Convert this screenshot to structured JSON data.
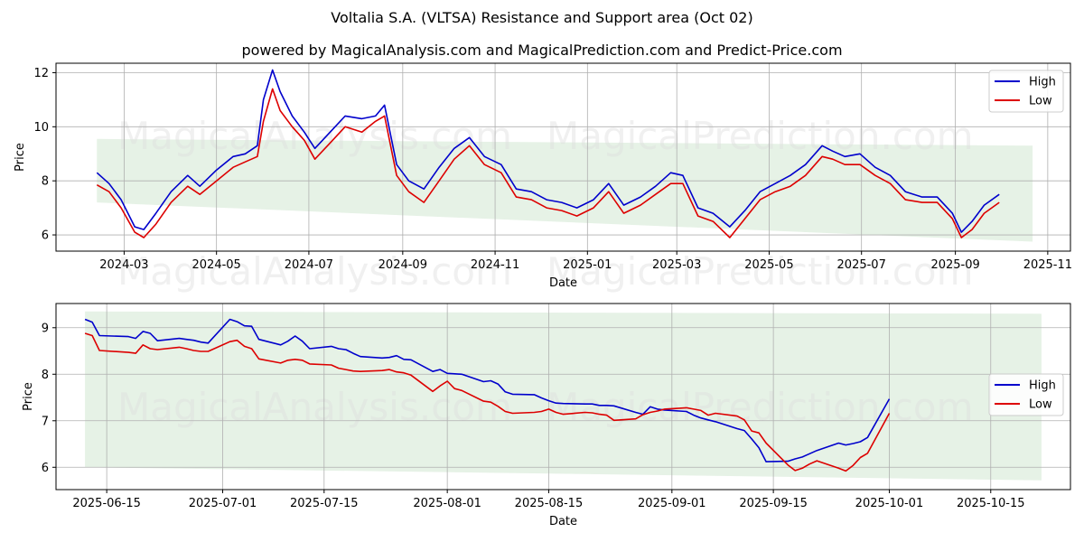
{
  "title": "Voltalia S.A. (VLTSA) Resistance and Support area (Oct 02)",
  "subtitle": "powered by MagicalAnalysis.com and MagicalPrediction.com and Predict-Price.com",
  "watermarks": [
    "MagicalAnalysis.com",
    "MagicalPrediction.com"
  ],
  "colors": {
    "high": "#0000cc",
    "low": "#dd0000",
    "band": "#e6f2e6",
    "grid": "#b0b0b0"
  },
  "chart_data": [
    {
      "type": "line",
      "xlabel": "Date",
      "ylabel": "Price",
      "xlim": [
        "2024-01-16",
        "2025-11-16"
      ],
      "ylim": [
        5.4,
        12.35
      ],
      "yticks": [
        6,
        8,
        10,
        12
      ],
      "xticks": [
        "2024-03-01",
        "2024-05-01",
        "2024-07-01",
        "2024-09-01",
        "2024-11-01",
        "2025-01-01",
        "2025-03-01",
        "2025-05-01",
        "2025-07-01",
        "2025-09-01",
        "2025-11-01"
      ],
      "xticklabels": [
        "2024-03",
        "2024-05",
        "2024-07",
        "2024-09",
        "2024-11",
        "2025-01",
        "2025-03",
        "2025-05",
        "2025-07",
        "2025-09",
        "2025-11"
      ],
      "grid": true,
      "legend": "top-right",
      "band": {
        "x": [
          "2024-02-12",
          "2025-10-22"
        ],
        "upper": [
          9.55,
          9.3
        ],
        "lower": [
          7.2,
          5.75
        ]
      },
      "series": [
        {
          "name": "High",
          "x": [
            "2024-02-12",
            "2024-02-20",
            "2024-02-28",
            "2024-03-08",
            "2024-03-14",
            "2024-03-22",
            "2024-04-01",
            "2024-04-12",
            "2024-04-20",
            "2024-05-01",
            "2024-05-12",
            "2024-05-20",
            "2024-05-28",
            "2024-06-01",
            "2024-06-07",
            "2024-06-12",
            "2024-06-20",
            "2024-06-28",
            "2024-07-05",
            "2024-07-15",
            "2024-07-25",
            "2024-08-05",
            "2024-08-14",
            "2024-08-20",
            "2024-08-28",
            "2024-09-05",
            "2024-09-15",
            "2024-09-25",
            "2024-10-05",
            "2024-10-15",
            "2024-10-25",
            "2024-11-05",
            "2024-11-15",
            "2024-11-25",
            "2024-12-05",
            "2024-12-15",
            "2024-12-25",
            "2025-01-05",
            "2025-01-15",
            "2025-01-25",
            "2025-02-05",
            "2025-02-15",
            "2025-02-25",
            "2025-03-05",
            "2025-03-15",
            "2025-03-25",
            "2025-04-05",
            "2025-04-15",
            "2025-04-25",
            "2025-05-05",
            "2025-05-15",
            "2025-05-25",
            "2025-06-05",
            "2025-06-12",
            "2025-06-20",
            "2025-06-30",
            "2025-07-10",
            "2025-07-20",
            "2025-07-30",
            "2025-08-10",
            "2025-08-20",
            "2025-08-30",
            "2025-09-05",
            "2025-09-12",
            "2025-09-20",
            "2025-09-30"
          ],
          "values": [
            8.3,
            7.9,
            7.3,
            6.3,
            6.2,
            6.8,
            7.6,
            8.2,
            7.8,
            8.4,
            8.9,
            9.0,
            9.3,
            11.0,
            12.1,
            11.3,
            10.4,
            9.8,
            9.2,
            9.8,
            10.4,
            10.3,
            10.4,
            10.8,
            8.6,
            8.0,
            7.7,
            8.5,
            9.2,
            9.6,
            8.9,
            8.6,
            7.7,
            7.6,
            7.3,
            7.2,
            7.0,
            7.3,
            7.9,
            7.1,
            7.4,
            7.8,
            8.3,
            8.2,
            7.0,
            6.8,
            6.3,
            6.9,
            7.6,
            7.9,
            8.2,
            8.6,
            9.3,
            9.1,
            8.9,
            9.0,
            8.5,
            8.2,
            7.6,
            7.4,
            7.4,
            6.8,
            6.1,
            6.5,
            7.1,
            7.5
          ]
        },
        {
          "name": "Low",
          "x": [
            "2024-02-12",
            "2024-02-20",
            "2024-02-28",
            "2024-03-08",
            "2024-03-14",
            "2024-03-22",
            "2024-04-01",
            "2024-04-12",
            "2024-04-20",
            "2024-05-01",
            "2024-05-12",
            "2024-05-20",
            "2024-05-28",
            "2024-06-01",
            "2024-06-07",
            "2024-06-12",
            "2024-06-20",
            "2024-06-28",
            "2024-07-05",
            "2024-07-15",
            "2024-07-25",
            "2024-08-05",
            "2024-08-14",
            "2024-08-20",
            "2024-08-28",
            "2024-09-05",
            "2024-09-15",
            "2024-09-25",
            "2024-10-05",
            "2024-10-15",
            "2024-10-25",
            "2024-11-05",
            "2024-11-15",
            "2024-11-25",
            "2024-12-05",
            "2024-12-15",
            "2024-12-25",
            "2025-01-05",
            "2025-01-15",
            "2025-01-25",
            "2025-02-05",
            "2025-02-15",
            "2025-02-25",
            "2025-03-05",
            "2025-03-15",
            "2025-03-25",
            "2025-04-05",
            "2025-04-15",
            "2025-04-25",
            "2025-05-05",
            "2025-05-15",
            "2025-05-25",
            "2025-06-05",
            "2025-06-12",
            "2025-06-20",
            "2025-06-30",
            "2025-07-10",
            "2025-07-20",
            "2025-07-30",
            "2025-08-10",
            "2025-08-20",
            "2025-08-30",
            "2025-09-05",
            "2025-09-12",
            "2025-09-20",
            "2025-09-30"
          ],
          "values": [
            7.85,
            7.6,
            7.0,
            6.1,
            5.9,
            6.4,
            7.2,
            7.8,
            7.5,
            8.0,
            8.5,
            8.7,
            8.9,
            10.2,
            11.4,
            10.6,
            10.0,
            9.5,
            8.8,
            9.4,
            10.0,
            9.8,
            10.2,
            10.4,
            8.2,
            7.6,
            7.2,
            8.0,
            8.8,
            9.3,
            8.6,
            8.3,
            7.4,
            7.3,
            7.0,
            6.9,
            6.7,
            7.0,
            7.6,
            6.8,
            7.1,
            7.5,
            7.9,
            7.9,
            6.7,
            6.5,
            5.9,
            6.6,
            7.3,
            7.6,
            7.8,
            8.2,
            8.9,
            8.8,
            8.6,
            8.6,
            8.2,
            7.9,
            7.3,
            7.2,
            7.2,
            6.6,
            5.9,
            6.2,
            6.8,
            7.2
          ]
        }
      ]
    },
    {
      "type": "line",
      "xlabel": "Date",
      "ylabel": "Price",
      "xlim": [
        "2025-06-08",
        "2025-10-26"
      ],
      "ylim": [
        5.52,
        9.52
      ],
      "yticks": [
        6,
        7,
        8,
        9
      ],
      "xticks": [
        "2025-06-15",
        "2025-07-01",
        "2025-07-15",
        "2025-08-01",
        "2025-08-15",
        "2025-09-01",
        "2025-09-15",
        "2025-10-01",
        "2025-10-15"
      ],
      "xticklabels": [
        "2025-06-15",
        "2025-07-01",
        "2025-07-15",
        "2025-08-01",
        "2025-08-15",
        "2025-09-01",
        "2025-09-15",
        "2025-10-01",
        "2025-10-15"
      ],
      "grid": true,
      "legend": "center-right",
      "band": {
        "x": [
          "2025-06-12",
          "2025-10-22"
        ],
        "upper": [
          9.35,
          9.3
        ],
        "lower": [
          6.0,
          5.72
        ]
      },
      "series": [
        {
          "name": "High",
          "x": [
            "2025-06-12",
            "2025-06-13",
            "2025-06-14",
            "2025-06-18",
            "2025-06-19",
            "2025-06-20",
            "2025-06-21",
            "2025-06-22",
            "2025-06-25",
            "2025-06-26",
            "2025-06-27",
            "2025-06-28",
            "2025-06-29",
            "2025-07-02",
            "2025-07-03",
            "2025-07-04",
            "2025-07-05",
            "2025-07-06",
            "2025-07-09",
            "2025-07-10",
            "2025-07-11",
            "2025-07-12",
            "2025-07-13",
            "2025-07-16",
            "2025-07-17",
            "2025-07-18",
            "2025-07-19",
            "2025-07-20",
            "2025-07-23",
            "2025-07-24",
            "2025-07-25",
            "2025-07-26",
            "2025-07-27",
            "2025-07-30",
            "2025-07-31",
            "2025-08-01",
            "2025-08-02",
            "2025-08-03",
            "2025-08-06",
            "2025-08-07",
            "2025-08-08",
            "2025-08-09",
            "2025-08-10",
            "2025-08-13",
            "2025-08-14",
            "2025-08-15",
            "2025-08-16",
            "2025-08-17",
            "2025-08-20",
            "2025-08-21",
            "2025-08-22",
            "2025-08-23",
            "2025-08-24",
            "2025-08-27",
            "2025-08-28",
            "2025-08-29",
            "2025-08-30",
            "2025-08-31",
            "2025-09-03",
            "2025-09-04",
            "2025-09-05",
            "2025-09-06",
            "2025-09-07",
            "2025-09-10",
            "2025-09-11",
            "2025-09-12",
            "2025-09-13",
            "2025-09-14",
            "2025-09-17",
            "2025-09-18",
            "2025-09-19",
            "2025-09-20",
            "2025-09-21",
            "2025-09-24",
            "2025-09-25",
            "2025-09-26",
            "2025-09-27",
            "2025-09-28",
            "2025-10-01"
          ],
          "values": [
            9.18,
            9.12,
            8.83,
            8.81,
            8.77,
            8.92,
            8.88,
            8.72,
            8.77,
            8.75,
            8.73,
            8.69,
            8.67,
            9.18,
            9.13,
            9.04,
            9.03,
            8.75,
            8.63,
            8.71,
            8.82,
            8.71,
            8.55,
            8.6,
            8.55,
            8.53,
            8.45,
            8.38,
            8.35,
            8.36,
            8.4,
            8.32,
            8.31,
            8.06,
            8.1,
            8.02,
            8.01,
            8.0,
            7.84,
            7.86,
            7.79,
            7.62,
            7.57,
            7.56,
            7.49,
            7.43,
            7.38,
            7.37,
            7.36,
            7.36,
            7.33,
            7.33,
            7.32,
            7.18,
            7.14,
            7.3,
            7.25,
            7.23,
            7.2,
            7.12,
            7.06,
            7.02,
            6.98,
            6.83,
            6.79,
            6.61,
            6.42,
            6.12,
            6.13,
            6.18,
            6.22,
            6.29,
            6.36,
            6.52,
            6.48,
            6.51,
            6.55,
            6.64,
            7.47
          ]
        },
        {
          "name": "Low",
          "x": [
            "2025-06-12",
            "2025-06-13",
            "2025-06-14",
            "2025-06-18",
            "2025-06-19",
            "2025-06-20",
            "2025-06-21",
            "2025-06-22",
            "2025-06-25",
            "2025-06-26",
            "2025-06-27",
            "2025-06-28",
            "2025-06-29",
            "2025-07-02",
            "2025-07-03",
            "2025-07-04",
            "2025-07-05",
            "2025-07-06",
            "2025-07-09",
            "2025-07-10",
            "2025-07-11",
            "2025-07-12",
            "2025-07-13",
            "2025-07-16",
            "2025-07-17",
            "2025-07-18",
            "2025-07-19",
            "2025-07-20",
            "2025-07-23",
            "2025-07-24",
            "2025-07-25",
            "2025-07-26",
            "2025-07-27",
            "2025-07-30",
            "2025-07-31",
            "2025-08-01",
            "2025-08-02",
            "2025-08-03",
            "2025-08-06",
            "2025-08-07",
            "2025-08-08",
            "2025-08-09",
            "2025-08-10",
            "2025-08-13",
            "2025-08-14",
            "2025-08-15",
            "2025-08-16",
            "2025-08-17",
            "2025-08-20",
            "2025-08-21",
            "2025-08-22",
            "2025-08-23",
            "2025-08-24",
            "2025-08-27",
            "2025-08-28",
            "2025-08-29",
            "2025-08-30",
            "2025-08-31",
            "2025-09-03",
            "2025-09-04",
            "2025-09-05",
            "2025-09-06",
            "2025-09-07",
            "2025-09-10",
            "2025-09-11",
            "2025-09-12",
            "2025-09-13",
            "2025-09-14",
            "2025-09-17",
            "2025-09-18",
            "2025-09-19",
            "2025-09-20",
            "2025-09-21",
            "2025-09-24",
            "2025-09-25",
            "2025-09-26",
            "2025-09-27",
            "2025-09-28",
            "2025-10-01"
          ],
          "values": [
            8.88,
            8.83,
            8.51,
            8.47,
            8.45,
            8.63,
            8.55,
            8.53,
            8.58,
            8.55,
            8.51,
            8.49,
            8.49,
            8.7,
            8.73,
            8.6,
            8.55,
            8.33,
            8.24,
            8.3,
            8.32,
            8.3,
            8.22,
            8.2,
            8.13,
            8.1,
            8.07,
            8.06,
            8.08,
            8.1,
            8.05,
            8.03,
            7.98,
            7.63,
            7.75,
            7.85,
            7.69,
            7.65,
            7.42,
            7.4,
            7.31,
            7.2,
            7.16,
            7.18,
            7.2,
            7.25,
            7.18,
            7.14,
            7.18,
            7.17,
            7.14,
            7.12,
            7.01,
            7.04,
            7.13,
            7.18,
            7.21,
            7.25,
            7.28,
            7.25,
            7.22,
            7.12,
            7.16,
            7.1,
            7.02,
            6.78,
            6.74,
            6.52,
            6.05,
            5.93,
            5.98,
            6.07,
            6.14,
            5.98,
            5.92,
            6.04,
            6.21,
            6.3,
            7.16
          ]
        }
      ]
    }
  ]
}
